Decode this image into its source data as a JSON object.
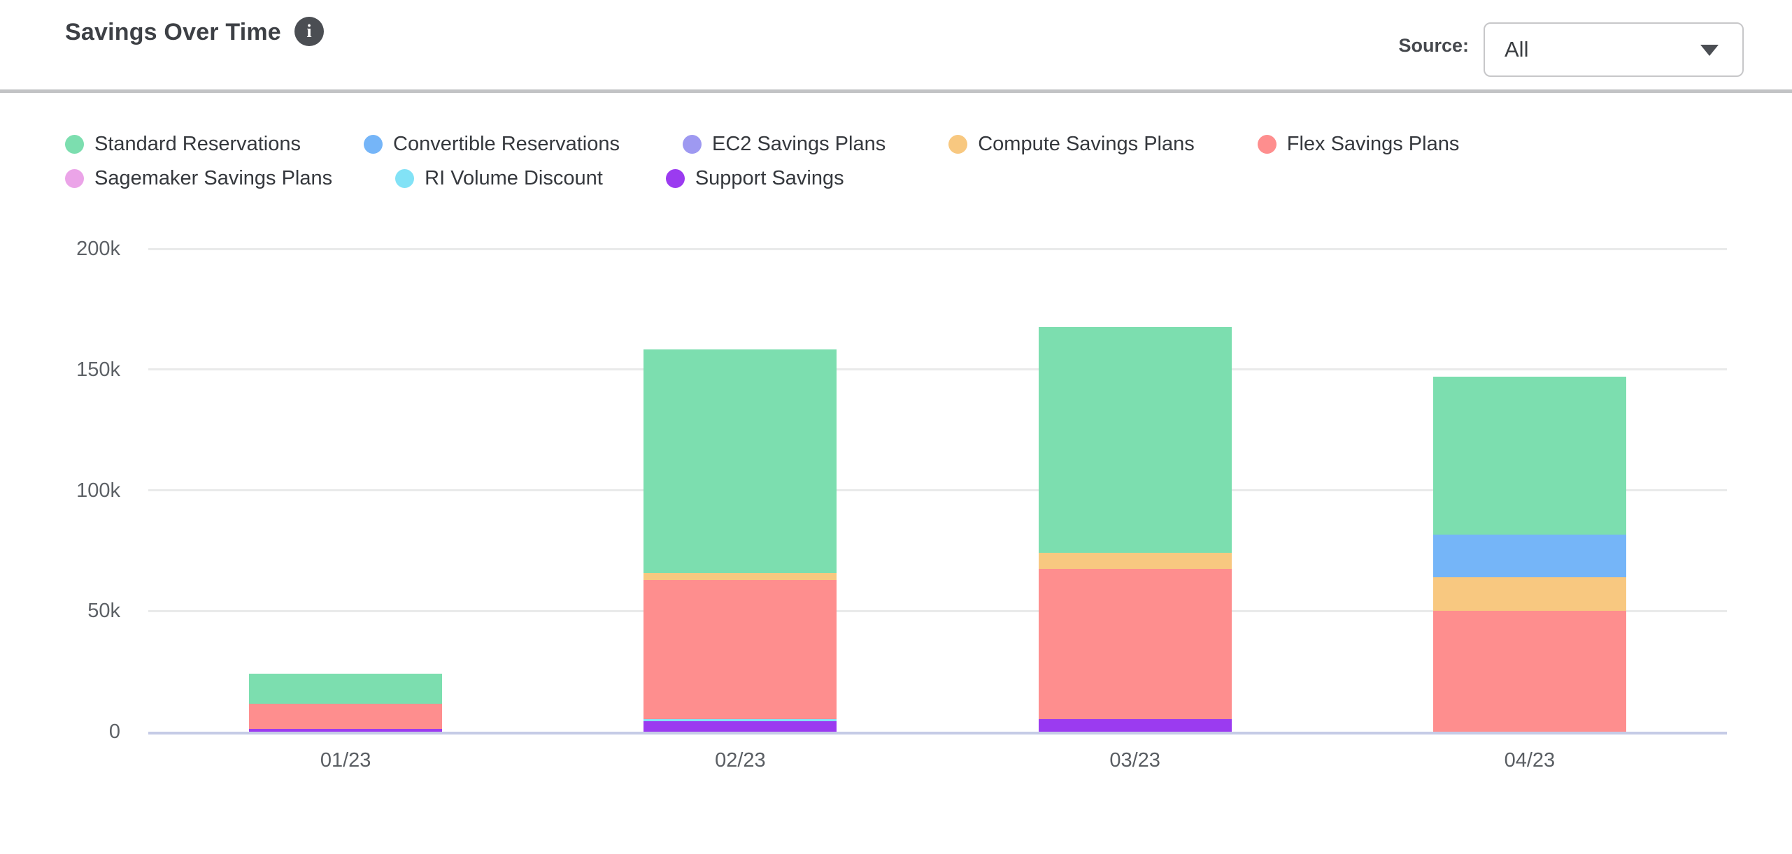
{
  "header": {
    "title": "Savings Over Time",
    "source_label": "Source:",
    "source_value": "All"
  },
  "chart_data": {
    "type": "bar",
    "stacked": true,
    "title": "Savings Over Time",
    "categories": [
      "01/23",
      "02/23",
      "03/23",
      "04/23"
    ],
    "series": [
      {
        "name": "Standard Reservations",
        "color": "#7cdeaf",
        "values": [
          12400,
          92600,
          93500,
          65500
        ]
      },
      {
        "name": "Convertible Reservations",
        "color": "#75b5f8",
        "values": [
          0,
          0,
          0,
          17500
        ]
      },
      {
        "name": "EC2 Savings Plans",
        "color": "#9e99f1",
        "values": [
          0,
          0,
          0,
          0
        ]
      },
      {
        "name": "Compute Savings Plans",
        "color": "#f8c880",
        "values": [
          0,
          2900,
          6800,
          14000
        ]
      },
      {
        "name": "Flex Savings Plans",
        "color": "#fe8e8e",
        "values": [
          10200,
          57500,
          62100,
          50000
        ]
      },
      {
        "name": "Sagemaker Savings Plans",
        "color": "#eba4e8",
        "values": [
          0,
          0,
          0,
          0
        ]
      },
      {
        "name": "RI Volume Discount",
        "color": "#82e2f6",
        "values": [
          0,
          900,
          0,
          0
        ]
      },
      {
        "name": "Support Savings",
        "color": "#9b3bf0",
        "values": [
          1300,
          4300,
          5300,
          0
        ]
      }
    ],
    "stack_order_bottom_to_top": [
      "Support Savings",
      "RI Volume Discount",
      "Sagemaker Savings Plans",
      "Flex Savings Plans",
      "Compute Savings Plans",
      "EC2 Savings Plans",
      "Convertible Reservations",
      "Standard Reservations"
    ],
    "totals": [
      23900,
      158200,
      167700,
      147000
    ],
    "ylim": [
      0,
      200000
    ],
    "yticks": [
      {
        "value": 0,
        "label": "0"
      },
      {
        "value": 50000,
        "label": "50k"
      },
      {
        "value": 100000,
        "label": "100k"
      },
      {
        "value": 150000,
        "label": "150k"
      },
      {
        "value": 200000,
        "label": "200k"
      }
    ],
    "xlabel": "",
    "ylabel": "",
    "grid": true,
    "legend_position": "top"
  }
}
